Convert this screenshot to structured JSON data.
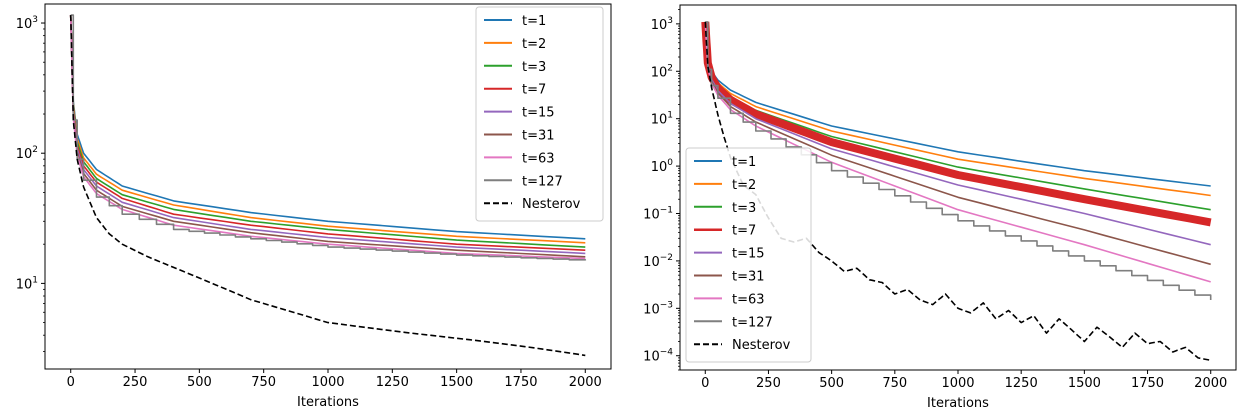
{
  "chart_data": [
    {
      "type": "line",
      "xlabel": "Iterations",
      "ylabel": "",
      "yscale": "log",
      "xlim": [
        -100,
        2100
      ],
      "ylim": [
        2.2,
        1400
      ],
      "xticks": [
        0,
        250,
        500,
        750,
        1000,
        1250,
        1500,
        1750,
        2000
      ],
      "yticks": [
        {
          "value": 10,
          "base": "10",
          "exp": "1"
        },
        {
          "value": 100,
          "base": "10",
          "exp": "2"
        },
        {
          "value": 1000,
          "base": "10",
          "exp": "3"
        }
      ],
      "legend_position": "top-right",
      "grid": false,
      "series": [
        {
          "name": "t=1",
          "color": "#1f77b4",
          "style": "solid",
          "x": [
            0,
            10,
            25,
            50,
            100,
            200,
            400,
            700,
            1000,
            1500,
            2000
          ],
          "y": [
            1150,
            250,
            140,
            100,
            75,
            56,
            43,
            35,
            30,
            25,
            22
          ]
        },
        {
          "name": "t=2",
          "color": "#ff7f0e",
          "style": "solid",
          "x": [
            0,
            10,
            25,
            50,
            100,
            200,
            400,
            700,
            1000,
            1500,
            2000
          ],
          "y": [
            1150,
            240,
            130,
            92,
            69,
            52,
            40,
            32,
            27.5,
            23,
            20.5
          ]
        },
        {
          "name": "t=3",
          "color": "#2ca02c",
          "style": "solid",
          "x": [
            0,
            10,
            25,
            50,
            100,
            200,
            400,
            700,
            1000,
            1500,
            2000
          ],
          "y": [
            1150,
            230,
            122,
            86,
            64,
            48,
            37,
            30,
            26,
            21.5,
            19
          ]
        },
        {
          "name": "t=7",
          "color": "#d62728",
          "style": "solid",
          "x": [
            0,
            10,
            25,
            50,
            100,
            200,
            400,
            700,
            1000,
            1500,
            2000
          ],
          "y": [
            1150,
            220,
            115,
            80,
            60,
            45,
            34,
            28,
            24,
            20,
            18
          ]
        },
        {
          "name": "t=15",
          "color": "#9467bd",
          "style": "solid",
          "x": [
            0,
            10,
            25,
            50,
            100,
            200,
            400,
            700,
            1000,
            1500,
            2000
          ],
          "y": [
            1150,
            210,
            108,
            75,
            56,
            42,
            32,
            26,
            22.5,
            19,
            17
          ]
        },
        {
          "name": "t=31",
          "color": "#8c564b",
          "style": "solid",
          "x": [
            0,
            10,
            25,
            50,
            100,
            200,
            400,
            700,
            1000,
            1500,
            2000
          ],
          "y": [
            1150,
            200,
            102,
            70,
            52,
            39,
            30,
            24.5,
            21,
            18,
            16
          ]
        },
        {
          "name": "t=63",
          "color": "#e377c2",
          "style": "solid",
          "x": [
            0,
            10,
            25,
            50,
            100,
            200,
            400,
            700,
            1000,
            1500,
            2000
          ],
          "y": [
            1150,
            190,
            96,
            66,
            49,
            37,
            28,
            23,
            20,
            17,
            15.5
          ]
        },
        {
          "name": "t=127",
          "color": "#7f7f7f",
          "style": "step",
          "x": [
            0,
            10,
            25,
            50,
            100,
            200,
            400,
            700,
            1000,
            1500,
            2000
          ],
          "y": [
            1150,
            180,
            90,
            62,
            46,
            34,
            26,
            22,
            19,
            16.5,
            15
          ]
        },
        {
          "name": "Nesterov",
          "color": "#000000",
          "style": "dashed",
          "x": [
            0,
            10,
            25,
            50,
            100,
            150,
            200,
            300,
            500,
            700,
            1000,
            1300,
            1600,
            1800,
            2000
          ],
          "y": [
            1150,
            180,
            90,
            55,
            32,
            24,
            20,
            16,
            11,
            7.5,
            5,
            4.2,
            3.6,
            3.2,
            2.8
          ]
        }
      ]
    },
    {
      "type": "line",
      "xlabel": "Iterations",
      "ylabel": "",
      "yscale": "log",
      "xlim": [
        -100,
        2100
      ],
      "ylim": [
        5e-05,
        2500
      ],
      "xticks": [
        0,
        250,
        500,
        750,
        1000,
        1250,
        1500,
        1750,
        2000
      ],
      "yticks": [
        {
          "value": 0.0001,
          "base": "10",
          "exp": "−4"
        },
        {
          "value": 0.001,
          "base": "10",
          "exp": "−3"
        },
        {
          "value": 0.01,
          "base": "10",
          "exp": "−2"
        },
        {
          "value": 0.1,
          "base": "10",
          "exp": "−1"
        },
        {
          "value": 1,
          "base": "10",
          "exp": "0"
        },
        {
          "value": 10,
          "base": "10",
          "exp": "1"
        },
        {
          "value": 100,
          "base": "10",
          "exp": "2"
        },
        {
          "value": 1000,
          "base": "10",
          "exp": "3"
        }
      ],
      "legend_position": "lower-left",
      "grid": false,
      "series": [
        {
          "name": "t=1",
          "color": "#1f77b4",
          "style": "solid",
          "x": [
            0,
            10,
            25,
            50,
            100,
            200,
            500,
            1000,
            1500,
            2000
          ],
          "y": [
            1100,
            180,
            100,
            65,
            40,
            22,
            7,
            2,
            0.8,
            0.38
          ]
        },
        {
          "name": "t=2",
          "color": "#ff7f0e",
          "style": "solid",
          "x": [
            0,
            10,
            25,
            50,
            100,
            200,
            500,
            1000,
            1500,
            2000
          ],
          "y": [
            1100,
            170,
            90,
            57,
            34,
            18,
            5.5,
            1.4,
            0.55,
            0.24
          ]
        },
        {
          "name": "t=3",
          "color": "#2ca02c",
          "style": "solid",
          "x": [
            0,
            10,
            25,
            50,
            100,
            200,
            500,
            1000,
            1500,
            2000
          ],
          "y": [
            1100,
            160,
            82,
            50,
            29,
            15,
            4.2,
            0.95,
            0.33,
            0.12
          ]
        },
        {
          "name": "t=7",
          "color": "#d62728",
          "style": "thick",
          "x": [
            0,
            10,
            25,
            50,
            100,
            200,
            500,
            1000,
            1500,
            2000
          ],
          "y": [
            1100,
            150,
            75,
            44,
            25,
            12.5,
            3.2,
            0.65,
            0.2,
            0.065
          ]
        },
        {
          "name": "t=15",
          "color": "#9467bd",
          "style": "solid",
          "x": [
            0,
            10,
            25,
            50,
            100,
            200,
            500,
            1000,
            1500,
            2000
          ],
          "y": [
            1100,
            140,
            68,
            39,
            21,
            10,
            2.3,
            0.4,
            0.1,
            0.022
          ]
        },
        {
          "name": "t=31",
          "color": "#8c564b",
          "style": "solid",
          "x": [
            0,
            10,
            25,
            50,
            100,
            200,
            500,
            1000,
            1500,
            2000
          ],
          "y": [
            1100,
            130,
            62,
            35,
            18,
            8.5,
            1.7,
            0.22,
            0.045,
            0.0085
          ]
        },
        {
          "name": "t=63",
          "color": "#e377c2",
          "style": "solid",
          "x": [
            0,
            10,
            25,
            50,
            100,
            200,
            500,
            1000,
            1500,
            2000
          ],
          "y": [
            1100,
            120,
            56,
            31,
            15.5,
            7,
            1.2,
            0.12,
            0.022,
            0.0036
          ]
        },
        {
          "name": "t=127",
          "color": "#7f7f7f",
          "style": "step",
          "x": [
            0,
            10,
            25,
            50,
            100,
            200,
            500,
            1000,
            1500,
            2000
          ],
          "y": [
            1100,
            110,
            50,
            27,
            13,
            5.5,
            0.8,
            0.07,
            0.01,
            0.0015
          ]
        },
        {
          "name": "Nesterov",
          "color": "#000000",
          "style": "dashed",
          "x": [
            0,
            10,
            25,
            50,
            75,
            100,
            150,
            200,
            250,
            300,
            350,
            400,
            450,
            500,
            550,
            600,
            650,
            700,
            750,
            800,
            850,
            900,
            950,
            1000,
            1050,
            1100,
            1150,
            1200,
            1250,
            1300,
            1350,
            1400,
            1450,
            1500,
            1550,
            1600,
            1650,
            1700,
            1750,
            1800,
            1850,
            1900,
            1950,
            2000
          ],
          "y": [
            1100,
            130,
            45,
            12,
            4,
            1.5,
            0.4,
            0.25,
            0.08,
            0.03,
            0.025,
            0.03,
            0.015,
            0.01,
            0.006,
            0.007,
            0.004,
            0.0035,
            0.002,
            0.0025,
            0.0015,
            0.0012,
            0.002,
            0.001,
            0.0008,
            0.0013,
            0.0006,
            0.0009,
            0.0005,
            0.0007,
            0.0003,
            0.0006,
            0.00035,
            0.0002,
            0.0004,
            0.00025,
            0.00015,
            0.0003,
            0.00018,
            0.0002,
            0.00012,
            0.00015,
            9e-05,
            8e-05
          ]
        }
      ]
    }
  ]
}
